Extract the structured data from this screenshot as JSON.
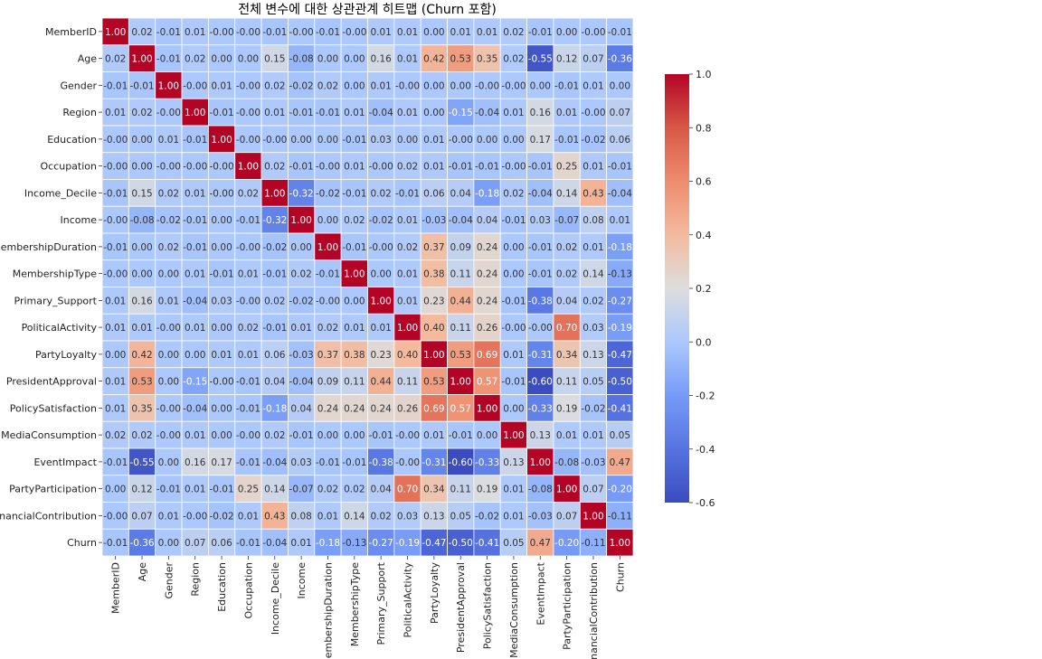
{
  "chart_data": {
    "type": "heatmap",
    "title": "전체 변수에 대한 상관관계 히트맵 (Churn 포함)",
    "colormap": "coolwarm",
    "vmin": -0.6,
    "vmax": 1.0,
    "colorbar_ticks": [
      "-0.6",
      "-0.4",
      "-0.2",
      "0.0",
      "0.2",
      "0.4",
      "0.6",
      "0.8",
      "1.0"
    ],
    "labels": [
      "MemberID",
      "Age",
      "Gender",
      "Region",
      "Education",
      "Occupation",
      "Income_Decile",
      "Income",
      "MembershipDuration",
      "MembershipType",
      "Primary_Support",
      "PoliticalActivity",
      "PartyLoyalty",
      "PresidentApproval",
      "PolicySatisfaction",
      "MediaConsumption",
      "EventImpact",
      "PartyParticipation",
      "FinancialContribution",
      "Churn"
    ],
    "values": [
      [
        "1.00",
        "0.02",
        "-0.01",
        "0.01",
        "-0.00",
        "-0.00",
        "-0.01",
        "-0.00",
        "-0.01",
        "-0.00",
        "0.01",
        "0.01",
        "0.00",
        "0.01",
        "0.01",
        "0.02",
        "-0.01",
        "0.00",
        "-0.00",
        "-0.01"
      ],
      [
        "0.02",
        "1.00",
        "-0.01",
        "0.02",
        "0.00",
        "0.00",
        "0.15",
        "-0.08",
        "0.00",
        "0.00",
        "0.16",
        "0.01",
        "0.42",
        "0.53",
        "0.35",
        "0.02",
        "-0.55",
        "0.12",
        "0.07",
        "-0.36"
      ],
      [
        "-0.01",
        "-0.01",
        "1.00",
        "-0.00",
        "0.01",
        "-0.00",
        "0.02",
        "-0.02",
        "0.02",
        "0.00",
        "0.01",
        "-0.00",
        "0.00",
        "0.00",
        "-0.00",
        "-0.00",
        "0.00",
        "-0.01",
        "0.01",
        "0.00"
      ],
      [
        "0.01",
        "0.02",
        "-0.00",
        "1.00",
        "-0.01",
        "-0.00",
        "0.01",
        "-0.01",
        "-0.01",
        "0.01",
        "-0.04",
        "0.01",
        "0.00",
        "-0.15",
        "-0.04",
        "0.01",
        "0.16",
        "0.01",
        "-0.00",
        "0.07"
      ],
      [
        "-0.00",
        "0.00",
        "0.01",
        "-0.01",
        "1.00",
        "-0.00",
        "-0.00",
        "0.00",
        "0.00",
        "-0.01",
        "0.03",
        "0.00",
        "0.01",
        "-0.00",
        "0.00",
        "0.00",
        "0.17",
        "-0.01",
        "-0.02",
        "0.06"
      ],
      [
        "-0.00",
        "0.00",
        "-0.00",
        "-0.00",
        "-0.00",
        "1.00",
        "0.02",
        "-0.01",
        "-0.00",
        "0.01",
        "-0.00",
        "0.02",
        "0.01",
        "-0.01",
        "-0.01",
        "-0.00",
        "-0.01",
        "0.25",
        "0.01",
        "-0.01"
      ],
      [
        "-0.01",
        "0.15",
        "0.02",
        "0.01",
        "-0.00",
        "0.02",
        "1.00",
        "-0.32",
        "-0.02",
        "-0.01",
        "0.02",
        "-0.01",
        "0.06",
        "0.04",
        "-0.18",
        "0.02",
        "-0.04",
        "0.14",
        "0.43",
        "-0.04"
      ],
      [
        "-0.00",
        "-0.08",
        "-0.02",
        "-0.01",
        "0.00",
        "-0.01",
        "-0.32",
        "1.00",
        "0.00",
        "0.02",
        "-0.02",
        "0.01",
        "-0.03",
        "-0.04",
        "0.04",
        "-0.01",
        "0.03",
        "-0.07",
        "0.08",
        "0.01"
      ],
      [
        "-0.01",
        "0.00",
        "0.02",
        "-0.01",
        "0.00",
        "-0.00",
        "-0.02",
        "0.00",
        "1.00",
        "-0.01",
        "-0.00",
        "0.02",
        "0.37",
        "0.09",
        "0.24",
        "0.00",
        "-0.01",
        "0.02",
        "0.01",
        "-0.18"
      ],
      [
        "-0.00",
        "0.00",
        "0.00",
        "0.01",
        "-0.01",
        "0.01",
        "-0.01",
        "0.02",
        "-0.01",
        "1.00",
        "0.00",
        "0.01",
        "0.38",
        "0.11",
        "0.24",
        "0.00",
        "-0.01",
        "0.02",
        "0.14",
        "-0.13"
      ],
      [
        "0.01",
        "0.16",
        "0.01",
        "-0.04",
        "0.03",
        "-0.00",
        "0.02",
        "-0.02",
        "-0.00",
        "0.00",
        "1.00",
        "0.01",
        "0.23",
        "0.44",
        "0.24",
        "-0.01",
        "-0.38",
        "0.04",
        "0.02",
        "-0.27"
      ],
      [
        "0.01",
        "0.01",
        "-0.00",
        "0.01",
        "0.00",
        "0.02",
        "-0.01",
        "0.01",
        "0.02",
        "0.01",
        "0.01",
        "1.00",
        "0.40",
        "0.11",
        "0.26",
        "-0.00",
        "-0.00",
        "0.70",
        "0.03",
        "-0.19"
      ],
      [
        "0.00",
        "0.42",
        "0.00",
        "0.00",
        "0.01",
        "0.01",
        "0.06",
        "-0.03",
        "0.37",
        "0.38",
        "0.23",
        "0.40",
        "1.00",
        "0.53",
        "0.69",
        "0.01",
        "-0.31",
        "0.34",
        "0.13",
        "-0.47"
      ],
      [
        "0.01",
        "0.53",
        "0.00",
        "-0.15",
        "-0.00",
        "-0.01",
        "0.04",
        "-0.04",
        "0.09",
        "0.11",
        "0.44",
        "0.11",
        "0.53",
        "1.00",
        "0.57",
        "-0.01",
        "-0.60",
        "0.11",
        "0.05",
        "-0.50"
      ],
      [
        "0.01",
        "0.35",
        "-0.00",
        "-0.04",
        "0.00",
        "-0.01",
        "-0.18",
        "0.04",
        "0.24",
        "0.24",
        "0.24",
        "0.26",
        "0.69",
        "0.57",
        "1.00",
        "0.00",
        "-0.33",
        "0.19",
        "-0.02",
        "-0.41"
      ],
      [
        "0.02",
        "0.02",
        "-0.00",
        "0.01",
        "0.00",
        "-0.00",
        "0.02",
        "-0.01",
        "0.00",
        "0.00",
        "-0.01",
        "-0.00",
        "0.01",
        "-0.01",
        "0.00",
        "1.00",
        "0.13",
        "0.01",
        "0.01",
        "0.05"
      ],
      [
        "-0.01",
        "-0.55",
        "0.00",
        "0.16",
        "0.17",
        "-0.01",
        "-0.04",
        "0.03",
        "-0.01",
        "-0.01",
        "-0.38",
        "-0.00",
        "-0.31",
        "-0.60",
        "-0.33",
        "0.13",
        "1.00",
        "-0.08",
        "-0.03",
        "0.47"
      ],
      [
        "0.00",
        "0.12",
        "-0.01",
        "0.01",
        "-0.01",
        "0.25",
        "0.14",
        "-0.07",
        "0.02",
        "0.02",
        "0.04",
        "0.70",
        "0.34",
        "0.11",
        "0.19",
        "0.01",
        "-0.08",
        "1.00",
        "0.07",
        "-0.20"
      ],
      [
        "-0.00",
        "0.07",
        "0.01",
        "-0.00",
        "-0.02",
        "0.01",
        "0.43",
        "0.08",
        "0.01",
        "0.14",
        "0.02",
        "0.03",
        "0.13",
        "0.05",
        "-0.02",
        "0.01",
        "-0.03",
        "0.07",
        "1.00",
        "-0.11"
      ],
      [
        "-0.01",
        "-0.36",
        "0.00",
        "0.07",
        "0.06",
        "-0.01",
        "-0.04",
        "0.01",
        "-0.18",
        "-0.13",
        "-0.27",
        "-0.19",
        "-0.47",
        "-0.50",
        "-0.41",
        "0.05",
        "0.47",
        "-0.20",
        "-0.11",
        "1.00"
      ]
    ]
  }
}
